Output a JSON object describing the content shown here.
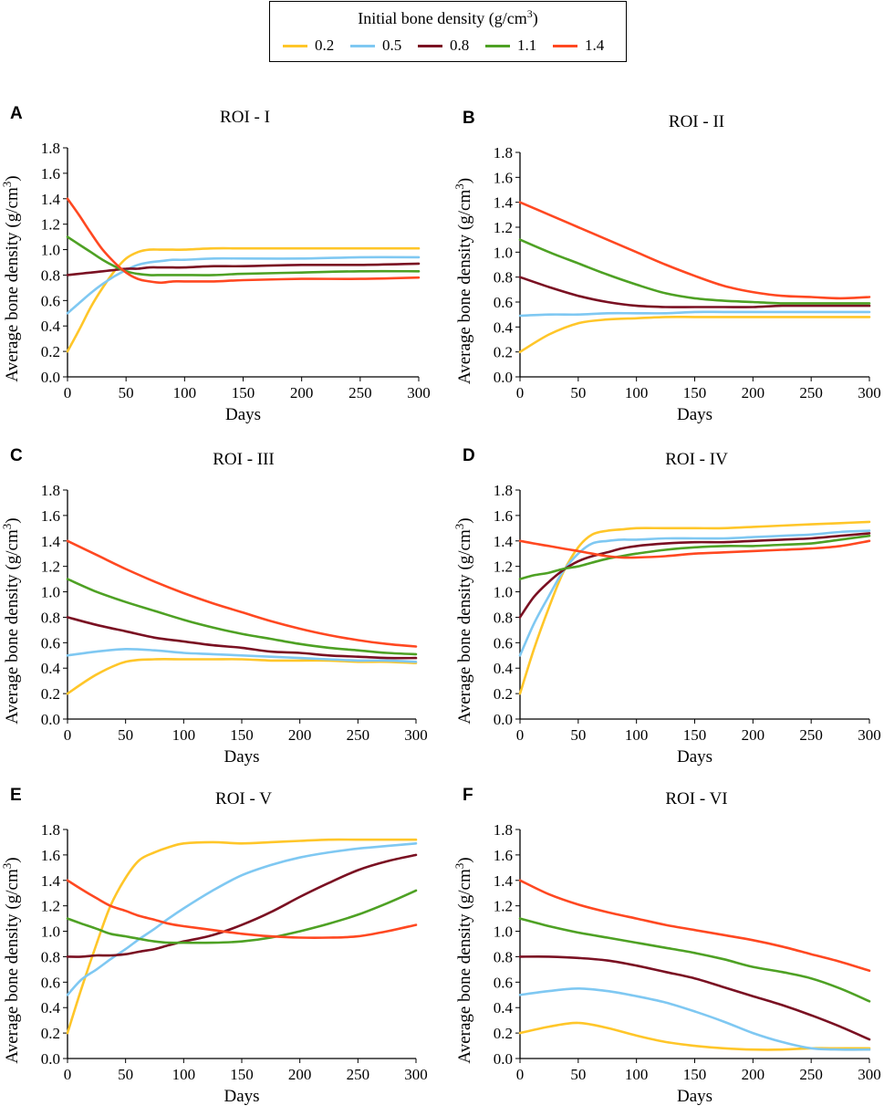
{
  "legend": {
    "title_prefix": "Initial bone density (g/cm",
    "title_sup": "3",
    "title_suffix": ")",
    "items": [
      {
        "label": "0.2",
        "color": "#ffc629"
      },
      {
        "label": "0.5",
        "color": "#7fc8f2"
      },
      {
        "label": "0.8",
        "color": "#7a1022"
      },
      {
        "label": "1.1",
        "color": "#4ea124"
      },
      {
        "label": "1.4",
        "color": "#ff4821"
      }
    ]
  },
  "chart_data": [
    {
      "type": "line",
      "panel_label": "A",
      "title": "ROI - I",
      "xlabel": "Days",
      "ylabel_prefix": "Average bone density (g/cm",
      "ylabel_sup": "3",
      "ylabel_suffix": ")",
      "xlim": [
        0,
        300
      ],
      "ylim": [
        0,
        1.8
      ],
      "xticks": [
        "0",
        "50",
        "100",
        "150",
        "200",
        "250",
        "300"
      ],
      "yticks": [
        "0.0",
        "0.2",
        "0.4",
        "0.6",
        "0.8",
        "1.0",
        "1.2",
        "1.4",
        "1.6",
        "1.8"
      ],
      "x": [
        0,
        10,
        20,
        30,
        40,
        50,
        60,
        70,
        80,
        90,
        100,
        125,
        150,
        200,
        250,
        300
      ],
      "series": [
        {
          "name": "0.2",
          "values": [
            0.2,
            0.37,
            0.55,
            0.7,
            0.83,
            0.93,
            0.98,
            1.0,
            1.0,
            1.0,
            1.0,
            1.01,
            1.01,
            1.01,
            1.01,
            1.01
          ]
        },
        {
          "name": "0.5",
          "values": [
            0.5,
            0.58,
            0.66,
            0.73,
            0.79,
            0.84,
            0.88,
            0.9,
            0.91,
            0.92,
            0.92,
            0.93,
            0.93,
            0.93,
            0.94,
            0.94
          ]
        },
        {
          "name": "0.8",
          "values": [
            0.8,
            0.81,
            0.82,
            0.83,
            0.84,
            0.85,
            0.85,
            0.86,
            0.86,
            0.86,
            0.86,
            0.87,
            0.87,
            0.88,
            0.88,
            0.89
          ]
        },
        {
          "name": "1.1",
          "values": [
            1.1,
            1.04,
            0.98,
            0.92,
            0.87,
            0.83,
            0.81,
            0.8,
            0.8,
            0.8,
            0.8,
            0.8,
            0.81,
            0.82,
            0.83,
            0.83
          ]
        },
        {
          "name": "1.4",
          "values": [
            1.4,
            1.27,
            1.13,
            1.0,
            0.9,
            0.82,
            0.77,
            0.75,
            0.74,
            0.75,
            0.75,
            0.75,
            0.76,
            0.77,
            0.77,
            0.78
          ]
        }
      ]
    },
    {
      "type": "line",
      "panel_label": "B",
      "title": "ROI - II",
      "xlabel": "Days",
      "ylabel_prefix": "Average bone density (g/cm",
      "ylabel_sup": "3",
      "ylabel_suffix": ")",
      "xlim": [
        0,
        300
      ],
      "ylim": [
        0,
        1.8
      ],
      "xticks": [
        "0",
        "50",
        "100",
        "150",
        "200",
        "250",
        "300"
      ],
      "yticks": [
        "0.0",
        "0.2",
        "0.4",
        "0.6",
        "0.8",
        "1.0",
        "1.2",
        "1.4",
        "1.6",
        "1.8"
      ],
      "x": [
        0,
        25,
        50,
        75,
        100,
        125,
        150,
        175,
        200,
        225,
        250,
        275,
        300
      ],
      "series": [
        {
          "name": "0.2",
          "values": [
            0.2,
            0.34,
            0.43,
            0.46,
            0.47,
            0.48,
            0.48,
            0.48,
            0.48,
            0.48,
            0.48,
            0.48,
            0.48
          ]
        },
        {
          "name": "0.5",
          "values": [
            0.49,
            0.5,
            0.5,
            0.51,
            0.51,
            0.51,
            0.52,
            0.52,
            0.52,
            0.52,
            0.52,
            0.52,
            0.52
          ]
        },
        {
          "name": "0.8",
          "values": [
            0.8,
            0.72,
            0.65,
            0.6,
            0.57,
            0.56,
            0.56,
            0.56,
            0.56,
            0.57,
            0.57,
            0.57,
            0.57
          ]
        },
        {
          "name": "1.1",
          "values": [
            1.1,
            1.0,
            0.91,
            0.82,
            0.74,
            0.67,
            0.63,
            0.61,
            0.6,
            0.59,
            0.59,
            0.59,
            0.59
          ]
        },
        {
          "name": "1.4",
          "values": [
            1.4,
            1.3,
            1.2,
            1.1,
            1.0,
            0.9,
            0.81,
            0.73,
            0.68,
            0.65,
            0.64,
            0.63,
            0.64
          ]
        }
      ]
    },
    {
      "type": "line",
      "panel_label": "C",
      "title": "ROI - III",
      "xlabel": "Days",
      "ylabel_prefix": "Average bone density (g/cm",
      "ylabel_sup": "3",
      "ylabel_suffix": ")",
      "xlim": [
        0,
        300
      ],
      "ylim": [
        0,
        1.8
      ],
      "xticks": [
        "0",
        "50",
        "100",
        "150",
        "200",
        "250",
        "300"
      ],
      "yticks": [
        "0.0",
        "0.2",
        "0.4",
        "0.6",
        "0.8",
        "1.0",
        "1.2",
        "1.4",
        "1.6",
        "1.8"
      ],
      "x": [
        0,
        25,
        50,
        75,
        100,
        125,
        150,
        175,
        200,
        225,
        250,
        275,
        300
      ],
      "series": [
        {
          "name": "0.2",
          "values": [
            0.2,
            0.35,
            0.45,
            0.47,
            0.47,
            0.47,
            0.47,
            0.46,
            0.46,
            0.46,
            0.45,
            0.45,
            0.44
          ]
        },
        {
          "name": "0.5",
          "values": [
            0.5,
            0.53,
            0.55,
            0.54,
            0.52,
            0.51,
            0.5,
            0.49,
            0.48,
            0.47,
            0.46,
            0.46,
            0.45
          ]
        },
        {
          "name": "0.8",
          "values": [
            0.8,
            0.74,
            0.69,
            0.64,
            0.61,
            0.58,
            0.56,
            0.53,
            0.52,
            0.5,
            0.49,
            0.48,
            0.48
          ]
        },
        {
          "name": "1.1",
          "values": [
            1.1,
            1.0,
            0.92,
            0.85,
            0.78,
            0.72,
            0.67,
            0.63,
            0.59,
            0.56,
            0.54,
            0.52,
            0.51
          ]
        },
        {
          "name": "1.4",
          "values": [
            1.4,
            1.29,
            1.18,
            1.08,
            0.99,
            0.91,
            0.84,
            0.77,
            0.71,
            0.66,
            0.62,
            0.59,
            0.57
          ]
        }
      ]
    },
    {
      "type": "line",
      "panel_label": "D",
      "title": "ROI - IV",
      "xlabel": "Days",
      "ylabel_prefix": "Average bone density (g/cm",
      "ylabel_sup": "3",
      "ylabel_suffix": ")",
      "xlim": [
        0,
        300
      ],
      "ylim": [
        0,
        1.8
      ],
      "xticks": [
        "0",
        "50",
        "100",
        "150",
        "200",
        "250",
        "300"
      ],
      "yticks": [
        "0.0",
        "0.2",
        "0.4",
        "0.6",
        "0.8",
        "1.0",
        "1.2",
        "1.4",
        "1.6",
        "1.8"
      ],
      "x": [
        0,
        12,
        25,
        37,
        50,
        62,
        75,
        87,
        100,
        125,
        150,
        175,
        200,
        225,
        250,
        275,
        300
      ],
      "series": [
        {
          "name": "0.2",
          "values": [
            0.2,
            0.55,
            0.88,
            1.15,
            1.35,
            1.45,
            1.48,
            1.49,
            1.5,
            1.5,
            1.5,
            1.5,
            1.51,
            1.52,
            1.53,
            1.54,
            1.55
          ]
        },
        {
          "name": "0.5",
          "values": [
            0.5,
            0.75,
            0.97,
            1.16,
            1.3,
            1.38,
            1.4,
            1.41,
            1.41,
            1.42,
            1.42,
            1.42,
            1.43,
            1.44,
            1.45,
            1.47,
            1.48
          ]
        },
        {
          "name": "0.8",
          "values": [
            0.8,
            0.96,
            1.08,
            1.17,
            1.24,
            1.28,
            1.31,
            1.34,
            1.36,
            1.38,
            1.39,
            1.39,
            1.4,
            1.41,
            1.42,
            1.44,
            1.46
          ]
        },
        {
          "name": "1.1",
          "values": [
            1.1,
            1.13,
            1.15,
            1.18,
            1.2,
            1.23,
            1.26,
            1.28,
            1.3,
            1.33,
            1.35,
            1.36,
            1.36,
            1.37,
            1.38,
            1.41,
            1.44
          ]
        },
        {
          "name": "1.4",
          "values": [
            1.4,
            1.38,
            1.36,
            1.34,
            1.32,
            1.3,
            1.28,
            1.27,
            1.27,
            1.28,
            1.3,
            1.31,
            1.32,
            1.33,
            1.34,
            1.36,
            1.4
          ]
        }
      ]
    },
    {
      "type": "line",
      "panel_label": "E",
      "title": "ROI - V",
      "xlabel": "Days",
      "ylabel_prefix": "Average bone density (g/cm",
      "ylabel_sup": "3",
      "ylabel_suffix": ")",
      "xlim": [
        0,
        300
      ],
      "ylim": [
        0,
        1.8
      ],
      "xticks": [
        "0",
        "50",
        "100",
        "150",
        "200",
        "250",
        "300"
      ],
      "yticks": [
        "0.0",
        "0.2",
        "0.4",
        "0.6",
        "0.8",
        "1.0",
        "1.2",
        "1.4",
        "1.6",
        "1.8"
      ],
      "x": [
        0,
        12,
        25,
        37,
        50,
        62,
        75,
        87,
        100,
        125,
        150,
        175,
        200,
        225,
        250,
        275,
        300
      ],
      "series": [
        {
          "name": "0.2",
          "values": [
            0.2,
            0.55,
            0.9,
            1.2,
            1.42,
            1.56,
            1.62,
            1.66,
            1.69,
            1.7,
            1.69,
            1.7,
            1.71,
            1.72,
            1.72,
            1.72,
            1.72
          ]
        },
        {
          "name": "0.5",
          "values": [
            0.5,
            0.62,
            0.7,
            0.78,
            0.86,
            0.94,
            1.02,
            1.1,
            1.18,
            1.32,
            1.44,
            1.52,
            1.58,
            1.62,
            1.65,
            1.67,
            1.69
          ]
        },
        {
          "name": "0.8",
          "values": [
            0.8,
            0.8,
            0.81,
            0.81,
            0.82,
            0.84,
            0.86,
            0.89,
            0.92,
            0.97,
            1.05,
            1.15,
            1.27,
            1.38,
            1.48,
            1.55,
            1.6
          ]
        },
        {
          "name": "1.1",
          "values": [
            1.1,
            1.06,
            1.02,
            0.98,
            0.96,
            0.94,
            0.92,
            0.91,
            0.91,
            0.91,
            0.92,
            0.95,
            1.0,
            1.06,
            1.13,
            1.22,
            1.32
          ]
        },
        {
          "name": "1.4",
          "values": [
            1.4,
            1.33,
            1.26,
            1.2,
            1.16,
            1.12,
            1.09,
            1.06,
            1.04,
            1.01,
            0.98,
            0.96,
            0.95,
            0.95,
            0.96,
            1.0,
            1.05
          ]
        }
      ]
    },
    {
      "type": "line",
      "panel_label": "F",
      "title": "ROI - VI",
      "xlabel": "Days",
      "ylabel_prefix": "Average bone density (g/cm",
      "ylabel_sup": "3",
      "ylabel_suffix": ")",
      "xlim": [
        0,
        300
      ],
      "ylim": [
        0,
        1.8
      ],
      "xticks": [
        "0",
        "50",
        "100",
        "150",
        "200",
        "250",
        "300"
      ],
      "yticks": [
        "0.0",
        "0.2",
        "0.4",
        "0.6",
        "0.8",
        "1.0",
        "1.2",
        "1.4",
        "1.6",
        "1.8"
      ],
      "x": [
        0,
        25,
        50,
        75,
        100,
        125,
        150,
        175,
        200,
        225,
        250,
        275,
        300
      ],
      "series": [
        {
          "name": "0.2",
          "values": [
            0.2,
            0.25,
            0.28,
            0.24,
            0.18,
            0.13,
            0.1,
            0.08,
            0.07,
            0.07,
            0.08,
            0.08,
            0.08
          ]
        },
        {
          "name": "0.5",
          "values": [
            0.5,
            0.53,
            0.55,
            0.53,
            0.49,
            0.44,
            0.37,
            0.29,
            0.2,
            0.13,
            0.08,
            0.07,
            0.07
          ]
        },
        {
          "name": "0.8",
          "values": [
            0.8,
            0.8,
            0.79,
            0.77,
            0.73,
            0.68,
            0.63,
            0.56,
            0.49,
            0.42,
            0.34,
            0.25,
            0.15
          ]
        },
        {
          "name": "1.1",
          "values": [
            1.1,
            1.04,
            0.99,
            0.95,
            0.91,
            0.87,
            0.83,
            0.78,
            0.72,
            0.68,
            0.63,
            0.55,
            0.45
          ]
        },
        {
          "name": "1.4",
          "values": [
            1.4,
            1.29,
            1.21,
            1.15,
            1.1,
            1.05,
            1.01,
            0.97,
            0.93,
            0.88,
            0.82,
            0.76,
            0.69
          ]
        }
      ]
    }
  ]
}
